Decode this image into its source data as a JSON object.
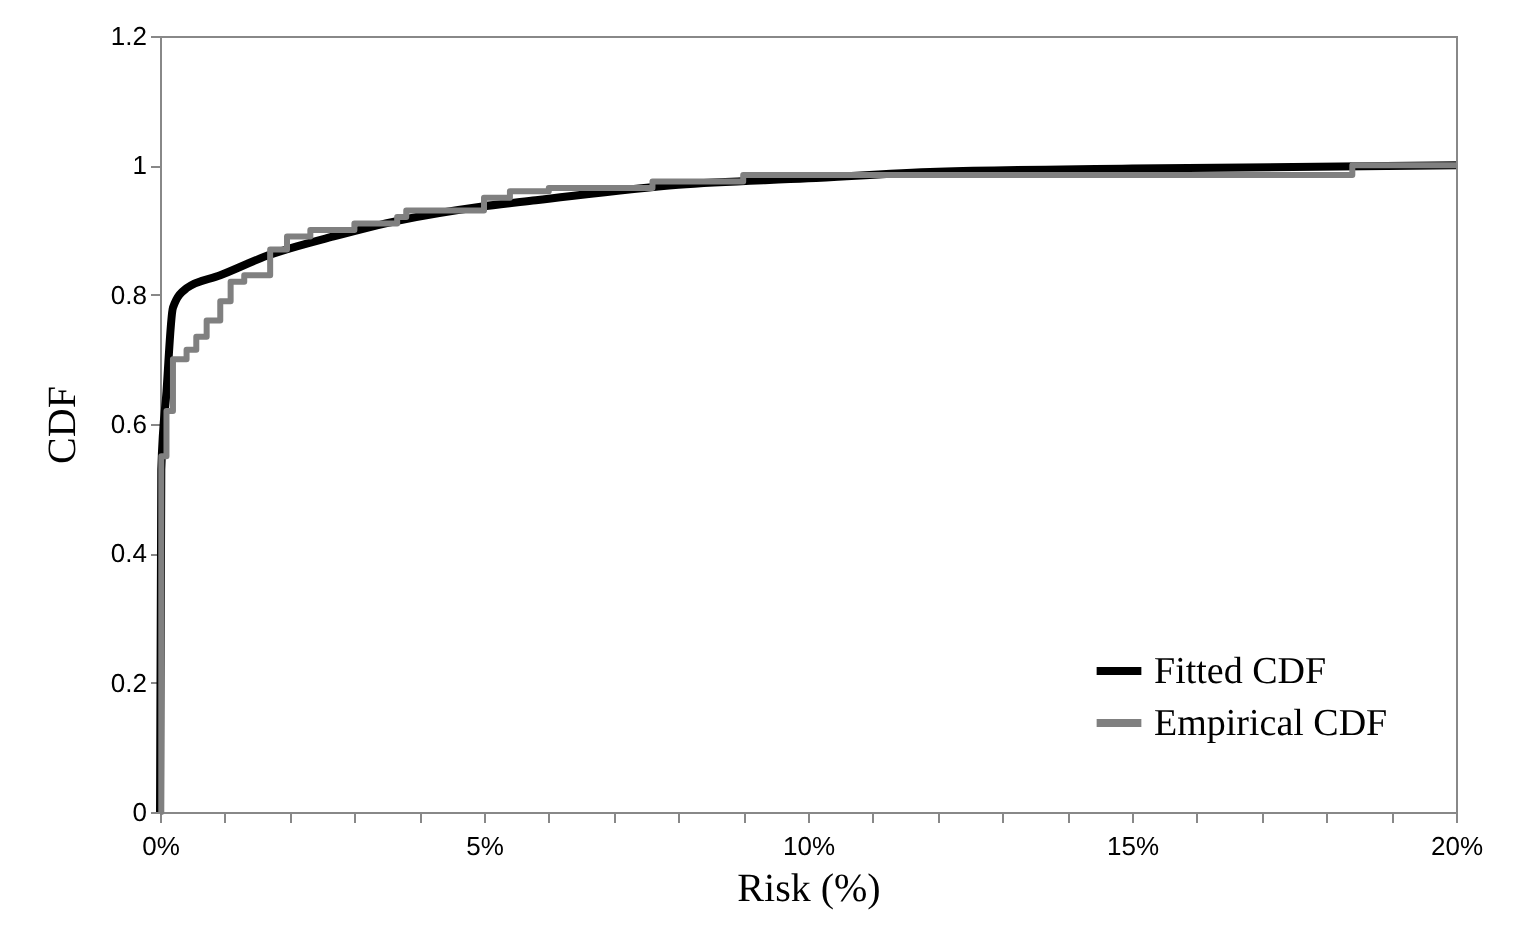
{
  "chart_data": {
    "type": "line",
    "xlabel": "Risk (%)",
    "ylabel": "CDF",
    "xlim": [
      0,
      20
    ],
    "ylim": [
      0,
      1.2
    ],
    "xticks": [
      {
        "value": 0,
        "label": "0%"
      },
      {
        "value": 1,
        "label": null
      },
      {
        "value": 2,
        "label": null
      },
      {
        "value": 3,
        "label": null
      },
      {
        "value": 4,
        "label": null
      },
      {
        "value": 5,
        "label": "5%"
      },
      {
        "value": 6,
        "label": null
      },
      {
        "value": 7,
        "label": null
      },
      {
        "value": 8,
        "label": null
      },
      {
        "value": 9,
        "label": null
      },
      {
        "value": 10,
        "label": "10%"
      },
      {
        "value": 11,
        "label": null
      },
      {
        "value": 12,
        "label": null
      },
      {
        "value": 13,
        "label": null
      },
      {
        "value": 14,
        "label": null
      },
      {
        "value": 15,
        "label": "15%"
      },
      {
        "value": 16,
        "label": null
      },
      {
        "value": 17,
        "label": null
      },
      {
        "value": 18,
        "label": null
      },
      {
        "value": 19,
        "label": null
      },
      {
        "value": 20,
        "label": "20%"
      }
    ],
    "yticks": [
      0,
      0.2,
      0.4,
      0.6,
      0.8,
      1,
      1.2
    ],
    "grid": false,
    "legend": "bottom right",
    "marker": "none",
    "line_style": "solid",
    "series": [
      {
        "name": "Fitted CDF",
        "color": "#000000",
        "type": "line",
        "x": [
          0,
          0.02,
          0.1,
          0.2,
          0.41,
          0.93,
          1.65,
          2.68,
          3.7,
          4.95,
          5.8,
          8,
          10,
          12,
          15,
          20
        ],
        "values": [
          0,
          0.53,
          0.65,
          0.78,
          0.81,
          0.83,
          0.86,
          0.89,
          0.915,
          0.936,
          0.946,
          0.97,
          0.98,
          0.99,
          0.995,
          1.0
        ]
      },
      {
        "name": "Empirical CDF",
        "color": "#808080",
        "type": "step",
        "x": [
          0,
          0.02,
          0.1,
          0.2,
          0.41,
          0.56,
          0.72,
          0.93,
          1.09,
          1.3,
          1.7,
          1.96,
          2.32,
          3.0,
          3.66,
          3.8,
          5.0,
          5.4,
          6.0,
          7.6,
          9.0,
          18.4,
          20
        ],
        "values": [
          0,
          0.55,
          0.62,
          0.7,
          0.715,
          0.735,
          0.76,
          0.79,
          0.82,
          0.83,
          0.87,
          0.89,
          0.9,
          0.91,
          0.92,
          0.93,
          0.95,
          0.96,
          0.965,
          0.975,
          0.985,
          1.0,
          1.0
        ]
      }
    ]
  }
}
